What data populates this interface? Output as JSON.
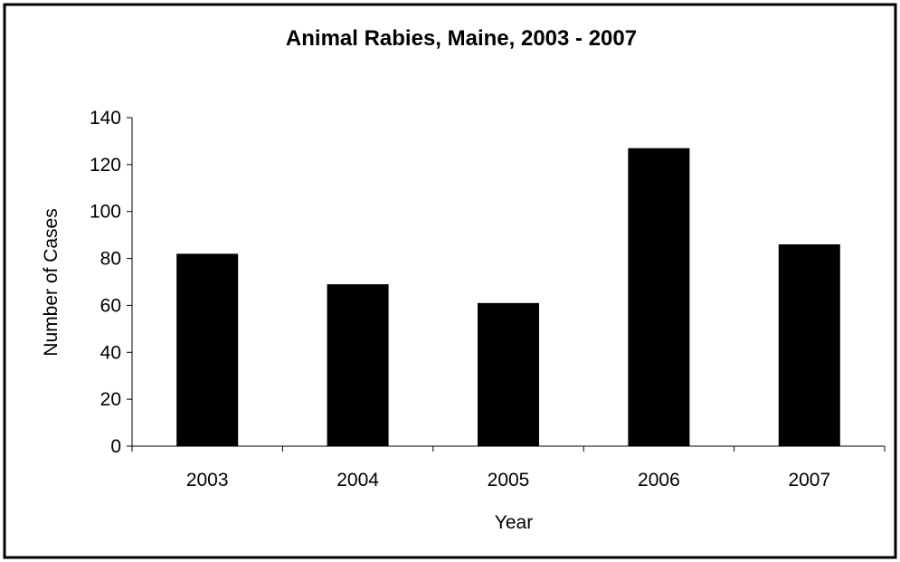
{
  "chart_data": {
    "type": "bar",
    "title": "Animal Rabies, Maine, 2003 - 2007",
    "xlabel": "Year",
    "ylabel": "Number of Cases",
    "categories": [
      "2003",
      "2004",
      "2005",
      "2006",
      "2007"
    ],
    "values": [
      82,
      69,
      61,
      127,
      86
    ],
    "ylim": [
      0,
      140
    ],
    "yticks": [
      "0",
      "20",
      "40",
      "60",
      "80",
      "100",
      "120",
      "140"
    ],
    "grid": false,
    "legend": "none",
    "bar_color": "#000000"
  }
}
